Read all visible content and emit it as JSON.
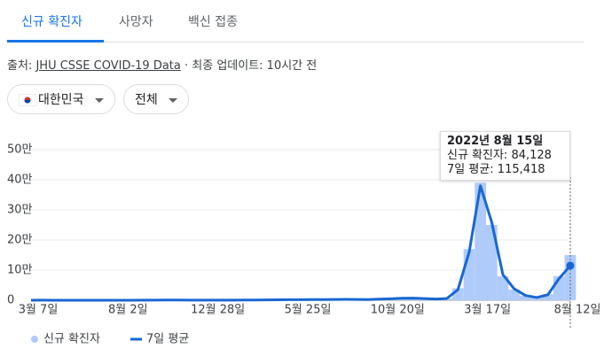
{
  "tabs": [
    "신규 확진자",
    "사망자",
    "백신 접종"
  ],
  "source": {
    "prefix": "출처:",
    "link": "JHU CSSE COVID-19 Data",
    "suffix": "· 최종 업데이트: 10시간 전"
  },
  "filters": [
    "대한민국",
    "전체"
  ],
  "tooltip": {
    "date": "2022년 8월 15일",
    "lines": [
      "신규 확진자: 84,128",
      "7일 평균: 115,418"
    ]
  },
  "chart_data": {
    "type": "bar-line",
    "categories": [
      "3월 7일",
      null,
      null,
      null,
      null,
      null,
      null,
      null,
      "8월 2일",
      null,
      null,
      null,
      null,
      null,
      null,
      null,
      "12월 28일",
      null,
      null,
      null,
      null,
      null,
      null,
      null,
      "5월 25일",
      null,
      null,
      null,
      null,
      null,
      null,
      null,
      "10월 20일",
      null,
      null,
      null,
      null,
      null,
      null,
      null,
      "3월 17일",
      null,
      null,
      null,
      null,
      null,
      null,
      null,
      "8월 12일"
    ],
    "series": [
      {
        "name": "신규 확진자",
        "color": "#aecbfa",
        "values": [
          0,
          500,
          100,
          50,
          40,
          50,
          50,
          50,
          200,
          100,
          300,
          400,
          700,
          1000,
          500,
          400,
          400,
          600,
          500,
          600,
          700,
          1200,
          1800,
          1700,
          2000,
          2500,
          2200,
          2800,
          3000,
          2500,
          2000,
          4000,
          5000,
          7000,
          7000,
          5500,
          4000,
          6000,
          40000,
          170000,
          390000,
          250000,
          80000,
          35000,
          15000,
          8000,
          20000,
          80000,
          150000
        ]
      },
      {
        "name": "7일 평균",
        "color": "#1967d2",
        "values": [
          0,
          400,
          150,
          60,
          40,
          45,
          50,
          50,
          150,
          120,
          250,
          350,
          600,
          900,
          550,
          400,
          420,
          550,
          520,
          600,
          650,
          1100,
          1600,
          1700,
          1900,
          2300,
          2200,
          2600,
          2900,
          2600,
          2100,
          3500,
          4800,
          6500,
          7000,
          5600,
          4200,
          5500,
          35000,
          160000,
          380000,
          260000,
          85000,
          38000,
          16000,
          9000,
          18000,
          72000,
          115000
        ]
      }
    ],
    "ylim": [
      0,
      500000
    ],
    "yticks": [
      0,
      {
        "value": 100000,
        "label": "10만"
      },
      {
        "value": 200000,
        "label": "20만"
      },
      {
        "value": 300000,
        "label": "30만"
      },
      {
        "value": 400000,
        "label": "40만"
      },
      {
        "value": 500000,
        "label": "50만"
      }
    ],
    "grid": true
  }
}
